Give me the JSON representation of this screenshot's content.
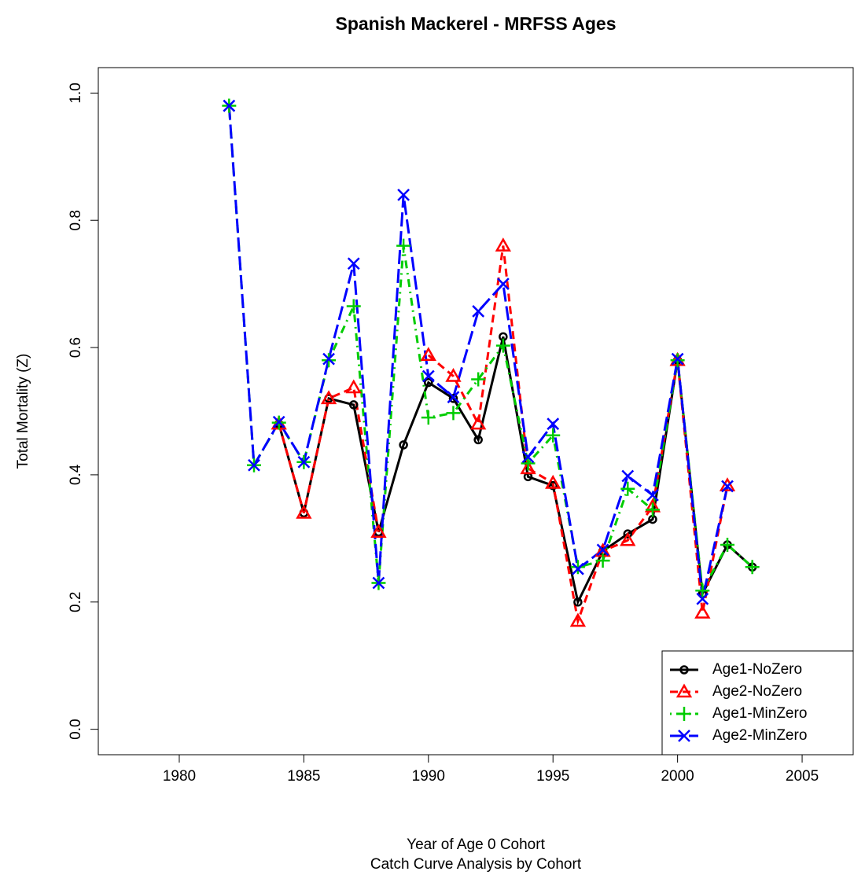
{
  "chart_data": {
    "type": "line",
    "title": "Spanish Mackerel - MRFSS Ages",
    "xlabel": "Year of Age 0 Cohort",
    "subtitle": "Catch Curve Analysis by Cohort",
    "ylabel": "Total Mortality (Z)",
    "x": [
      1982,
      1983,
      1984,
      1985,
      1986,
      1987,
      1988,
      1989,
      1990,
      1991,
      1992,
      1993,
      1994,
      1995,
      1996,
      1997,
      1998,
      1999,
      2000,
      2001,
      2002,
      2003
    ],
    "series": [
      {
        "name": "Age1-NoZero",
        "color": "#000000",
        "marker": "circle",
        "linestyle": "solid",
        "values": [
          null,
          null,
          0.48,
          0.34,
          0.52,
          0.51,
          0.31,
          0.447,
          0.545,
          0.52,
          0.455,
          0.617,
          0.397,
          0.383,
          0.2,
          0.28,
          0.307,
          0.33,
          0.58,
          0.213,
          0.29,
          0.255
        ]
      },
      {
        "name": "Age2-NoZero",
        "color": "#ff0000",
        "marker": "triangle",
        "linestyle": "dashed",
        "values": [
          null,
          null,
          0.48,
          0.34,
          0.52,
          0.537,
          0.31,
          null,
          0.588,
          0.555,
          0.48,
          0.76,
          0.41,
          0.387,
          0.17,
          0.28,
          0.297,
          0.35,
          0.58,
          0.183,
          0.383,
          null
        ]
      },
      {
        "name": "Age1-MinZero",
        "color": "#00cc00",
        "marker": "plus",
        "linestyle": "dotdash",
        "values": [
          0.98,
          0.415,
          0.482,
          0.42,
          0.58,
          0.665,
          0.23,
          0.76,
          0.49,
          0.497,
          0.55,
          0.603,
          0.418,
          0.462,
          0.255,
          0.265,
          0.378,
          0.345,
          0.58,
          0.218,
          0.29,
          0.255
        ]
      },
      {
        "name": "Age2-MinZero",
        "color": "#0000ff",
        "marker": "x",
        "linestyle": "longdash",
        "values": [
          0.98,
          0.415,
          0.483,
          0.42,
          0.582,
          0.732,
          0.23,
          0.84,
          0.555,
          0.522,
          0.657,
          0.7,
          0.428,
          0.48,
          0.252,
          0.282,
          0.398,
          0.368,
          0.582,
          0.205,
          0.382,
          null
        ]
      }
    ],
    "xlim": [
      1976.75,
      2007.05
    ],
    "xticks": [
      1980,
      1985,
      1990,
      1995,
      2000,
      2005
    ],
    "ylim": [
      -0.04,
      1.04
    ],
    "yticks": [
      {
        "value": 0,
        "label": "0.0"
      },
      {
        "value": 0.2,
        "label": "0.2"
      },
      {
        "value": 0.4,
        "label": "0.4"
      },
      {
        "value": 0.6,
        "label": "0.6"
      },
      {
        "value": 0.8,
        "label": "0.8"
      },
      {
        "value": 1,
        "label": "1.0"
      }
    ],
    "legend": "bottom-right"
  }
}
